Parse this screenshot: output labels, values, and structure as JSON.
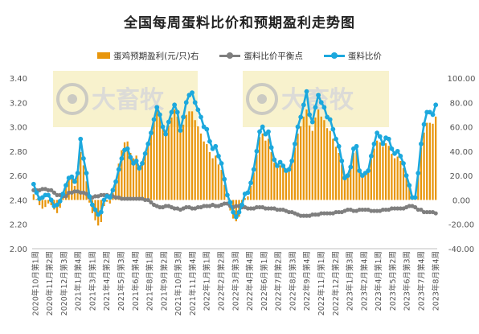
{
  "chart_data": {
    "type": "bar+line",
    "title": "全国每周蛋料比价和预期盈利走势图",
    "legend": [
      "蛋鸡预期盈利(元/只)右",
      "蛋料比价平衡点",
      "蛋料比价"
    ],
    "legend_position": "top",
    "grid": false,
    "colors": {
      "bar": "#E8960C",
      "balance": "#7F7F7F",
      "ratio": "#1CA8DD"
    },
    "left_axis": {
      "range": [
        2.0,
        3.4
      ],
      "ticks": [
        "2.00",
        "2.20",
        "2.40",
        "2.60",
        "2.80",
        "3.00",
        "3.20",
        "3.40"
      ]
    },
    "right_axis": {
      "range": [
        -40,
        100
      ],
      "ticks": [
        "-40.00",
        "-20.00",
        "0.00",
        "20.00",
        "40.00",
        "60.00",
        "80.00",
        "100.00"
      ]
    },
    "x_tick_labels": [
      "2020年10月第1周",
      "2020年11月第2周",
      "2020年12月第3周",
      "2021年1月第4周",
      "2021年3月第1周",
      "2021年4月第2周",
      "2021年5月第3周",
      "2021年6月第4周",
      "2021年8月第1周",
      "2021年9月第2周",
      "2021年10月第3周",
      "2021年11月第4周",
      "2022年1月第1周",
      "2022年2月第2周",
      "2022年3月第3周",
      "2022年4月第4周",
      "2022年6月第1周",
      "2022年7月第2周",
      "2022年8月第3周",
      "2022年9月第4周",
      "2022年11月第1周",
      "2022年12月第2周",
      "2023年1月第3周",
      "2023年2月第4周",
      "2023年4月第1周",
      "2023年5月第2周",
      "2023年6月第3周",
      "2023年7月第4周",
      "2023年8月第4周"
    ],
    "watermarks": [
      "大畜牧",
      "大畜牧"
    ],
    "series": [
      {
        "name": "蛋料比价",
        "axis": "left",
        "values": [
          2.53,
          2.46,
          2.41,
          2.42,
          2.44,
          2.44,
          2.4,
          2.35,
          2.36,
          2.39,
          2.45,
          2.52,
          2.58,
          2.59,
          2.55,
          2.62,
          2.9,
          2.74,
          2.62,
          2.43,
          2.36,
          2.32,
          2.28,
          2.3,
          2.4,
          2.43,
          2.42,
          2.48,
          2.55,
          2.65,
          2.74,
          2.81,
          2.82,
          2.75,
          2.7,
          2.72,
          2.66,
          2.7,
          2.78,
          2.86,
          2.95,
          3.06,
          3.16,
          3.1,
          3.0,
          2.94,
          3.04,
          3.12,
          3.18,
          3.12,
          2.97,
          3.08,
          3.2,
          3.26,
          3.28,
          3.2,
          3.14,
          3.08,
          3.0,
          2.98,
          2.88,
          2.82,
          2.84,
          2.76,
          2.7,
          2.57,
          2.44,
          2.38,
          2.3,
          2.26,
          2.3,
          2.36,
          2.45,
          2.46,
          2.54,
          2.65,
          2.8,
          2.96,
          3.0,
          2.94,
          2.96,
          2.83,
          2.73,
          2.68,
          2.71,
          2.68,
          2.64,
          2.65,
          2.72,
          2.86,
          3.0,
          3.08,
          3.18,
          3.29,
          3.1,
          3.04,
          3.16,
          3.26,
          3.2,
          3.16,
          3.08,
          3.06,
          2.98,
          2.9,
          2.84,
          2.72,
          2.58,
          2.6,
          2.67,
          2.82,
          2.84,
          2.64,
          2.6,
          2.62,
          2.64,
          2.76,
          2.86,
          2.95,
          2.92,
          2.86,
          2.91,
          2.9,
          2.82,
          2.78,
          2.8,
          2.76,
          2.7,
          2.6,
          2.52,
          2.42,
          2.42,
          2.62,
          2.86,
          3.02,
          3.12,
          3.12,
          3.1,
          3.18
        ]
      },
      {
        "name": "蛋料比价平衡点",
        "axis": "left",
        "values": [
          2.48,
          2.48,
          2.48,
          2.49,
          2.49,
          2.48,
          2.48,
          2.46,
          2.44,
          2.44,
          2.43,
          2.43,
          2.46,
          2.46,
          2.47,
          2.47,
          2.46,
          2.46,
          2.45,
          2.42,
          2.42,
          2.43,
          2.43,
          2.44,
          2.44,
          2.44,
          2.43,
          2.43,
          2.42,
          2.42,
          2.41,
          2.41,
          2.41,
          2.41,
          2.41,
          2.41,
          2.41,
          2.41,
          2.4,
          2.4,
          2.38,
          2.36,
          2.35,
          2.34,
          2.34,
          2.35,
          2.35,
          2.34,
          2.33,
          2.33,
          2.32,
          2.33,
          2.34,
          2.34,
          2.33,
          2.33,
          2.34,
          2.34,
          2.35,
          2.35,
          2.35,
          2.36,
          2.35,
          2.35,
          2.36,
          2.37,
          2.37,
          2.35,
          2.34,
          2.35,
          2.35,
          2.34,
          2.34,
          2.33,
          2.33,
          2.33,
          2.34,
          2.34,
          2.34,
          2.33,
          2.33,
          2.33,
          2.33,
          2.32,
          2.32,
          2.32,
          2.31,
          2.3,
          2.3,
          2.29,
          2.28,
          2.27,
          2.27,
          2.27,
          2.27,
          2.28,
          2.28,
          2.28,
          2.29,
          2.29,
          2.29,
          2.29,
          2.29,
          2.3,
          2.3,
          2.3,
          2.31,
          2.32,
          2.32,
          2.31,
          2.31,
          2.32,
          2.32,
          2.32,
          2.32,
          2.31,
          2.31,
          2.31,
          2.31,
          2.32,
          2.32,
          2.32,
          2.33,
          2.33,
          2.33,
          2.33,
          2.33,
          2.34,
          2.35,
          2.35,
          2.34,
          2.32,
          2.32,
          2.3,
          2.3,
          2.3,
          2.3,
          2.29
        ]
      },
      {
        "name": "蛋鸡预期盈利(元/只)右",
        "axis": "right",
        "type": "bar",
        "values": [
          4.7,
          0.8,
          -4.3,
          -7.2,
          -5.8,
          -2.9,
          -4.3,
          -7.9,
          -10.8,
          -6.5,
          1.5,
          10.2,
          17.5,
          20.4,
          11.6,
          21.8,
          39.3,
          28.4,
          15.3,
          -2.2,
          -10.8,
          -16.7,
          -21.0,
          -18.2,
          -5.0,
          -1.5,
          -2.9,
          5.8,
          15.3,
          29.8,
          40.8,
          47.3,
          48.0,
          38.6,
          34.2,
          36.4,
          28.4,
          32.0,
          40.0,
          48.0,
          56.7,
          66.2,
          74.2,
          68.4,
          58.9,
          53.1,
          61.1,
          67.6,
          74.2,
          68.4,
          56.0,
          61.8,
          69.8,
          72.7,
          72.7,
          65.5,
          60.4,
          54.5,
          48.0,
          45.8,
          39.3,
          34.2,
          36.4,
          29.1,
          24.7,
          12.4,
          0.0,
          -8.7,
          -15.3,
          -17.5,
          -13.8,
          -7.2,
          1.5,
          2.9,
          11.6,
          22.5,
          37.1,
          51.6,
          54.5,
          48.7,
          50.2,
          39.3,
          30.5,
          26.2,
          28.4,
          26.2,
          23.3,
          23.3,
          30.5,
          42.9,
          54.5,
          60.4,
          68.4,
          74.2,
          61.1,
          56.7,
          67.6,
          74.2,
          68.4,
          65.5,
          58.9,
          56.7,
          50.2,
          43.6,
          38.6,
          29.1,
          18.2,
          20.4,
          26.9,
          38.6,
          40.0,
          24.0,
          20.4,
          22.5,
          24.0,
          33.5,
          42.2,
          48.7,
          47.3,
          43.6,
          46.5,
          44.4,
          37.8,
          34.2,
          35.6,
          32.0,
          26.2,
          18.2,
          11.6,
          3.6,
          3.6,
          21.8,
          42.9,
          55.3,
          63.3,
          63.3,
          62.5,
          68.4
        ]
      }
    ]
  }
}
